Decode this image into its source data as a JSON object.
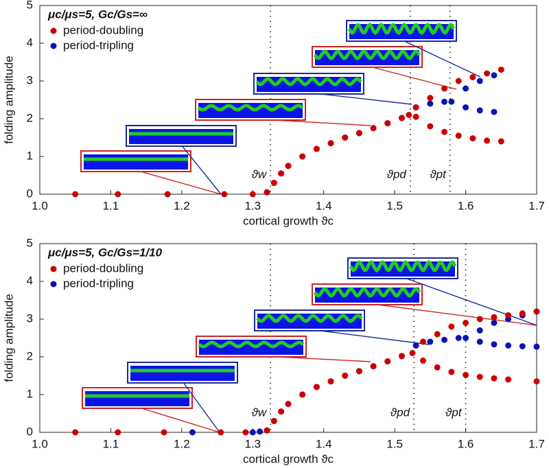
{
  "chart_data": [
    {
      "type": "scatter",
      "title": "μc/μs=5, Gc/Gs=∞",
      "xlabel": "cortical growth ϑc",
      "ylabel": "folding amplitude",
      "xlim": [
        1.0,
        1.7
      ],
      "xticks": [
        {
          "value": 1.0,
          "label": "1.0"
        },
        1.1,
        1.2,
        1.3,
        1.4,
        1.5,
        1.6,
        1.7
      ],
      "ylim": [
        0,
        5
      ],
      "yticks": [
        0,
        1,
        2,
        3,
        4,
        5
      ],
      "legend": "upper left",
      "vlines": [
        {
          "x": 1.325,
          "label": "ϑw"
        },
        {
          "x": 1.522,
          "label": "ϑpd"
        },
        {
          "x": 1.578,
          "label": "ϑpt"
        }
      ],
      "series": [
        {
          "name": "period-doubling",
          "color": "#cc0000",
          "x": [
            1.05,
            1.11,
            1.18,
            1.26,
            1.3,
            1.32,
            1.33,
            1.34,
            1.35,
            1.37,
            1.39,
            1.41,
            1.43,
            1.45,
            1.47,
            1.49,
            1.51,
            1.52,
            1.53,
            1.55,
            1.57,
            1.59,
            1.61,
            1.63,
            1.65,
            1.53,
            1.55,
            1.57,
            1.59,
            1.61,
            1.63,
            1.65
          ],
          "values": [
            0,
            0,
            0,
            0,
            0,
            0.05,
            0.3,
            0.55,
            0.75,
            1.0,
            1.2,
            1.35,
            1.5,
            1.62,
            1.75,
            1.88,
            2.02,
            2.1,
            2.3,
            2.55,
            2.8,
            3.0,
            3.1,
            3.2,
            3.3,
            2.05,
            1.8,
            1.65,
            1.55,
            1.48,
            1.42,
            1.4
          ]
        },
        {
          "name": "period-tripling",
          "color": "#0a14b4",
          "x": [
            1.32,
            1.33,
            1.34,
            1.35,
            1.37,
            1.39,
            1.41,
            1.43,
            1.45,
            1.47,
            1.49,
            1.51,
            1.53,
            1.55,
            1.57,
            1.58,
            1.6,
            1.62,
            1.64,
            1.6,
            1.62,
            1.64
          ],
          "values": [
            0.05,
            0.3,
            0.55,
            0.75,
            1.0,
            1.2,
            1.35,
            1.5,
            1.62,
            1.75,
            1.88,
            2.02,
            2.3,
            2.4,
            2.45,
            2.45,
            2.8,
            3.0,
            3.15,
            2.3,
            2.22,
            2.18
          ]
        }
      ]
    },
    {
      "type": "scatter",
      "title": "μc/μs=5, Gc/Gs=1/10",
      "xlabel": "cortical growth ϑc",
      "ylabel": "folding amplitude",
      "xlim": [
        1.0,
        1.7
      ],
      "xticks": [
        {
          "value": 1.0,
          "label": "1.0"
        },
        1.1,
        1.2,
        1.3,
        1.4,
        1.5,
        1.6,
        1.7
      ],
      "ylim": [
        0,
        5
      ],
      "yticks": [
        0,
        1,
        2,
        3,
        4,
        5
      ],
      "legend": "upper left",
      "vlines": [
        {
          "x": 1.325,
          "label": "ϑw"
        },
        {
          "x": 1.527,
          "label": "ϑpd"
        },
        {
          "x": 1.6,
          "label": "ϑpt"
        }
      ],
      "series": [
        {
          "name": "period-doubling",
          "color": "#cc0000",
          "x": [
            1.05,
            1.11,
            1.175,
            1.255,
            1.29,
            1.32,
            1.33,
            1.34,
            1.35,
            1.37,
            1.39,
            1.41,
            1.43,
            1.45,
            1.47,
            1.49,
            1.51,
            1.525,
            1.54,
            1.56,
            1.58,
            1.6,
            1.62,
            1.64,
            1.66,
            1.68,
            1.7,
            1.54,
            1.56,
            1.58,
            1.6,
            1.62,
            1.64,
            1.66,
            1.7
          ],
          "values": [
            0,
            0,
            0,
            0,
            0,
            0.05,
            0.3,
            0.55,
            0.75,
            1.0,
            1.2,
            1.35,
            1.5,
            1.62,
            1.75,
            1.88,
            2.02,
            2.1,
            2.4,
            2.6,
            2.8,
            2.9,
            3.0,
            3.05,
            3.1,
            3.15,
            3.2,
            1.9,
            1.72,
            1.6,
            1.52,
            1.47,
            1.43,
            1.4,
            1.35
          ]
        },
        {
          "name": "period-tripling",
          "color": "#0a14b4",
          "x": [
            1.215,
            1.3,
            1.31,
            1.32,
            1.33,
            1.34,
            1.35,
            1.37,
            1.39,
            1.41,
            1.43,
            1.45,
            1.47,
            1.49,
            1.51,
            1.53,
            1.55,
            1.57,
            1.59,
            1.6,
            1.62,
            1.64,
            1.66,
            1.68,
            1.7,
            1.62,
            1.64,
            1.66,
            1.68,
            1.7
          ],
          "values": [
            0,
            0,
            0.02,
            0.05,
            0.3,
            0.55,
            0.75,
            1.0,
            1.2,
            1.35,
            1.5,
            1.62,
            1.75,
            1.88,
            2.02,
            2.3,
            2.4,
            2.45,
            2.5,
            2.5,
            2.7,
            2.9,
            3.0,
            3.1,
            3.2,
            2.4,
            2.33,
            2.3,
            2.28,
            2.27
          ]
        }
      ]
    }
  ]
}
